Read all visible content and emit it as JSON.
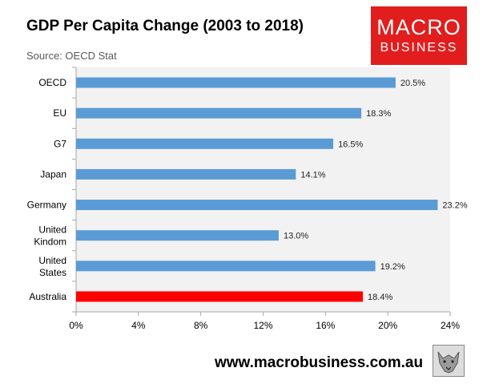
{
  "title": "GDP Per Capita Change (2003 to 2018)",
  "subtitle": "Source: OECD Stat",
  "logo": {
    "line1": "MACRO",
    "line2": "BUSINESS"
  },
  "footer": "www.macrobusiness.com.au",
  "colors": {
    "bar": "#5b9bd5",
    "highlight": "#ff0000",
    "plot_bg": "#f2f2f2",
    "logo_bg": "#e21d1d"
  },
  "chart_data": {
    "type": "bar",
    "orientation": "horizontal",
    "categories": [
      [
        "OECD"
      ],
      [
        "EU"
      ],
      [
        "G7"
      ],
      [
        "Japan"
      ],
      [
        "Germany"
      ],
      [
        "United",
        "Kindom"
      ],
      [
        "United",
        "States"
      ],
      [
        "Australia"
      ]
    ],
    "values": [
      20.5,
      18.3,
      16.5,
      14.1,
      23.2,
      13.0,
      19.2,
      18.4
    ],
    "labels": [
      "20.5%",
      "18.3%",
      "16.5%",
      "14.1%",
      "23.2%",
      "13.0%",
      "19.2%",
      "18.4%"
    ],
    "highlight": "Australia",
    "xlim": [
      0,
      24
    ],
    "xticks": [
      0,
      4,
      8,
      12,
      16,
      20,
      24
    ],
    "xtick_labels": [
      "0%",
      "4%",
      "8%",
      "12%",
      "16%",
      "20%",
      "24%"
    ],
    "grid": false
  }
}
